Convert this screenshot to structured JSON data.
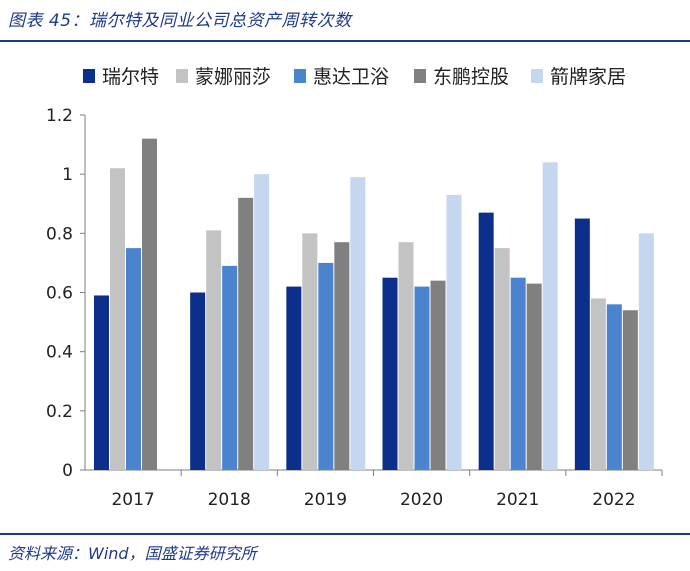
{
  "title": "图表 45：瑞尔特及同业公司总资产周转次数",
  "source": "资料来源：Wind，国盛证券研究所",
  "chart_data": {
    "type": "bar",
    "title": "瑞尔特及同业公司总资产周转次数",
    "xlabel": "",
    "ylabel": "",
    "ylim": [
      0,
      1.2
    ],
    "yticks": [
      "0",
      "0.2",
      "0.4",
      "0.6",
      "0.8",
      "1",
      "1.2"
    ],
    "categories": [
      "2017",
      "2018",
      "2019",
      "2020",
      "2021",
      "2022"
    ],
    "legend_position": "top",
    "series": [
      {
        "name": "瑞尔特",
        "color": "#0b2f8a",
        "values": [
          0.59,
          0.6,
          0.62,
          0.65,
          0.87,
          0.85
        ]
      },
      {
        "name": "蒙娜丽莎",
        "color": "#c3c3c3",
        "values": [
          1.02,
          0.81,
          0.8,
          0.77,
          0.75,
          0.58
        ]
      },
      {
        "name": "惠达卫浴",
        "color": "#4a84cf",
        "values": [
          0.75,
          0.69,
          0.7,
          0.62,
          0.65,
          0.56
        ]
      },
      {
        "name": "东鹏控股",
        "color": "#808080",
        "values": [
          1.12,
          0.92,
          0.77,
          0.64,
          0.63,
          0.54
        ]
      },
      {
        "name": "箭牌家居",
        "color": "#c5d6ef",
        "values": [
          null,
          1.0,
          0.99,
          0.93,
          1.04,
          0.8
        ]
      }
    ]
  }
}
